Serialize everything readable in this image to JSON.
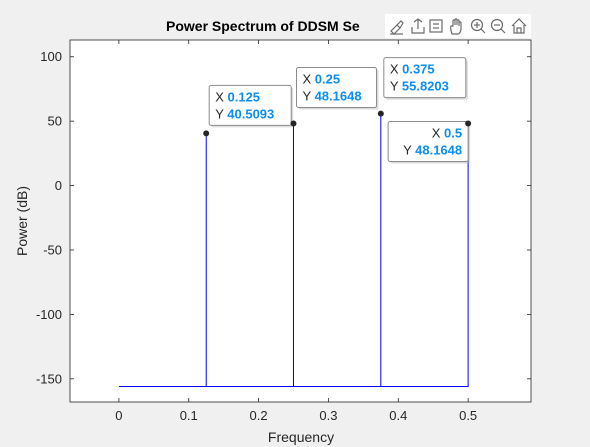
{
  "chart_data": {
    "type": "line",
    "title": "Power Spectrum of DDSM Se",
    "xlabel": "Frequency",
    "ylabel": "Power (dB)",
    "xlim": [
      -0.07,
      0.59
    ],
    "ylim": [
      -168,
      113
    ],
    "xticks": [
      0,
      0.1,
      0.2,
      0.3,
      0.4,
      0.5
    ],
    "xtick_labels": [
      "0",
      "0.1",
      "0.2",
      "0.3",
      "0.4",
      "0.5"
    ],
    "yticks": [
      -150,
      -100,
      -50,
      0,
      50,
      100
    ],
    "ytick_labels": [
      "-150",
      "-100",
      "-50",
      "0",
      "50",
      "100"
    ],
    "grid": false,
    "baseline": -156,
    "series": [
      {
        "color": "#0000ff",
        "x": [
          0,
          0.125,
          0.125,
          0.125,
          0.25,
          0.25,
          0.25,
          0.375,
          0.375,
          0.375,
          0.5,
          0.5
        ],
        "y": [
          -156,
          -156,
          40.5093,
          -156,
          -156,
          48.1648,
          -156,
          -156,
          55.8203,
          -156,
          -156,
          48.1648
        ]
      }
    ],
    "datatips": [
      {
        "x": 0.125,
        "y": 40.5093,
        "x_label": "0.125",
        "y_label": "40.5093"
      },
      {
        "x": 0.25,
        "y": 48.1648,
        "x_label": "0.25",
        "y_label": "48.1648"
      },
      {
        "x": 0.375,
        "y": 55.8203,
        "x_label": "0.375",
        "y_label": "55.8203"
      },
      {
        "x": 0.5,
        "y": 48.1648,
        "x_label": "0.5",
        "y_label": "48.1648"
      }
    ],
    "datatip_keys": {
      "x": "X",
      "y": "Y"
    }
  },
  "toolbar": {
    "icons": [
      "brush-icon",
      "export-icon",
      "data-tips-icon",
      "pan-icon",
      "zoom-in-icon",
      "zoom-out-icon",
      "home-icon"
    ]
  }
}
